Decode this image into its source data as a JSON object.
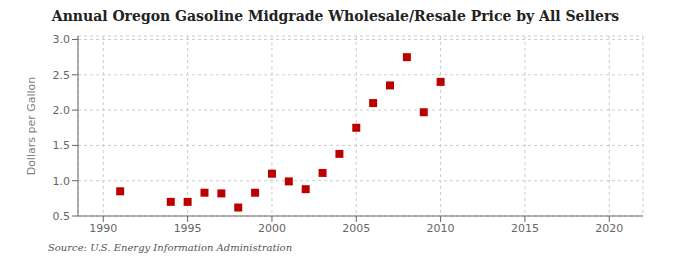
{
  "chart_data": {
    "type": "scatter",
    "title": "Annual Oregon Gasoline Midgrade Wholesale/Resale Price by All Sellers",
    "ylabel": "Dollars per Gallon",
    "annotation": "Source: U.S. Energy Information Administration",
    "x": [
      1991,
      1994,
      1995,
      1996,
      1997,
      1998,
      1999,
      2000,
      2001,
      2002,
      2003,
      2004,
      2005,
      2006,
      2007,
      2008,
      2009,
      2010
    ],
    "values": [
      0.85,
      0.7,
      0.7,
      0.83,
      0.82,
      0.62,
      0.83,
      1.1,
      0.99,
      0.88,
      1.11,
      1.38,
      1.75,
      2.1,
      2.35,
      2.75,
      1.97,
      2.4
    ],
    "color": "#bb0000",
    "marker": "square",
    "xlim": [
      1988.5,
      2022
    ],
    "ylim": [
      0.5,
      3.05
    ],
    "xticks": [
      1990,
      1995,
      2000,
      2005,
      2010,
      2015,
      2020
    ],
    "yticks": [
      0.5,
      {
        "value": 1,
        "label": "1.0"
      },
      1.5,
      {
        "value": 2,
        "label": "2.0"
      },
      2.5,
      {
        "value": 3,
        "label": "3.0"
      }
    ],
    "grid": true
  }
}
